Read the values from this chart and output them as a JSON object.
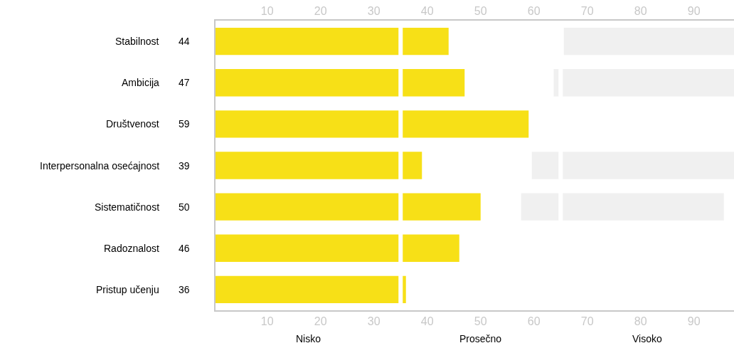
{
  "chart_data": {
    "type": "bar",
    "orientation": "horizontal",
    "categories": [
      "Stabilnost",
      "Ambicija",
      "Društvenost",
      "Interpersonalna osećajnost",
      "Sistematičnost",
      "Radoznalost",
      "Pristup učenju"
    ],
    "series": [
      {
        "color": "#f0f0f0",
        "base": [
          65.6,
          63.7,
          null,
          59.6,
          57.6,
          null,
          null
        ],
        "values": [
          31.9,
          33.8,
          null,
          37.9,
          38.0,
          null,
          null
        ]
      },
      {
        "color": "#f7e017",
        "values": [
          44,
          47,
          59,
          39,
          50,
          46,
          36
        ],
        "data_labels": true
      }
    ],
    "xlim": [
      0.3,
      97.5
    ],
    "xticks": [
      10,
      20,
      30,
      40,
      50,
      60,
      70,
      80,
      90
    ],
    "x2lim": [
      0.3,
      97.5
    ],
    "x2ticks": [
      10,
      20,
      30,
      40,
      50,
      60,
      70,
      80,
      90
    ],
    "ref_lines": [
      {
        "axis": "x",
        "value": 35,
        "color": "#ffffff"
      },
      {
        "axis": "x",
        "value": 65,
        "color": "#ffffff"
      }
    ],
    "annotations": [
      "Nisko",
      "Prosečno",
      "Visoko"
    ]
  }
}
